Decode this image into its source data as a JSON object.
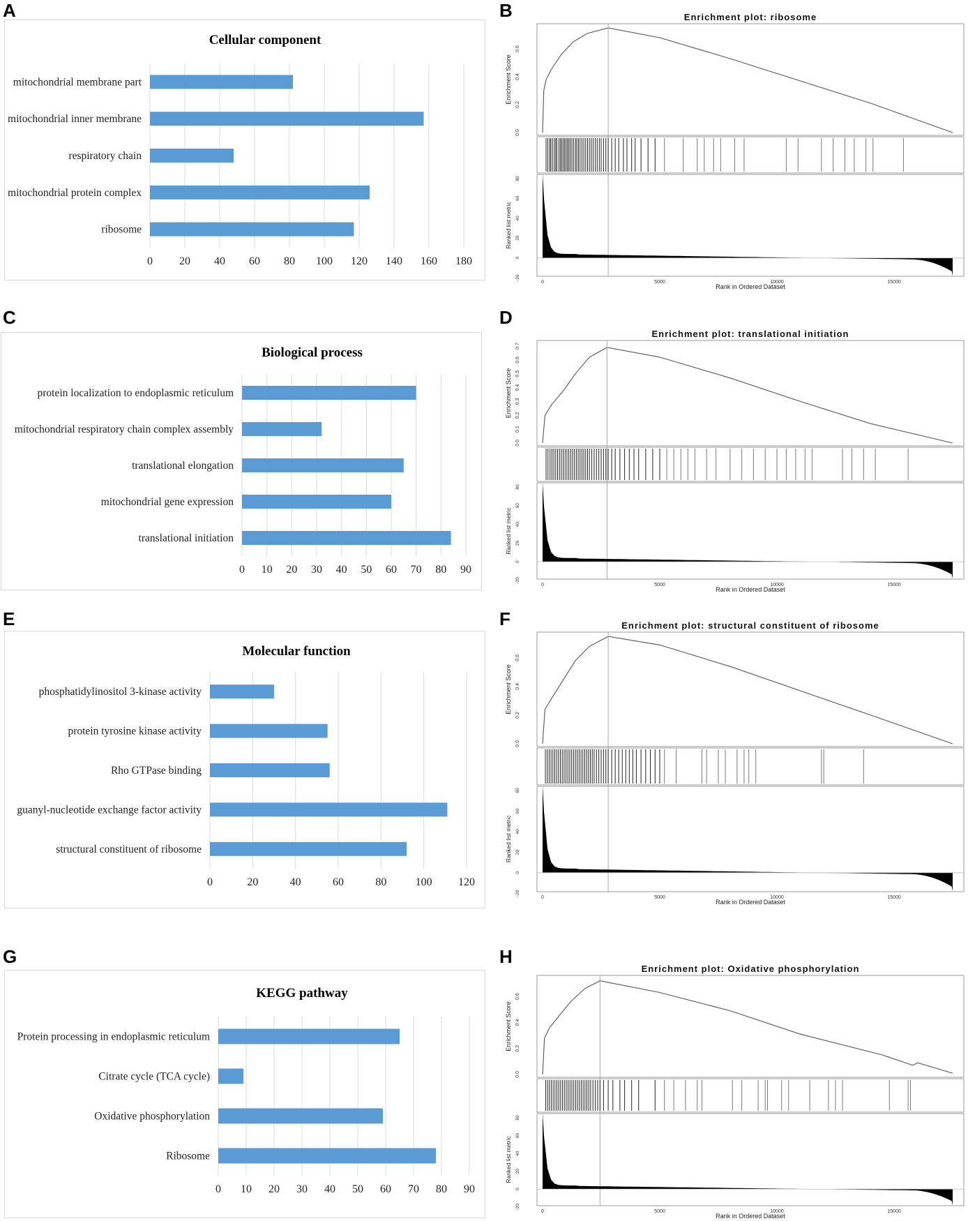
{
  "panel_letters": [
    "A",
    "B",
    "C",
    "D",
    "E",
    "F",
    "G",
    "H"
  ],
  "colors": {
    "bar": "#5b9bd5",
    "grid": "#d9d9d9",
    "frame": "#d9d9d9",
    "gsea_line": "#555555",
    "gsea_hits": "#222222"
  },
  "chart_data": [
    {
      "panel": "A",
      "type": "bar",
      "orientation": "horizontal",
      "title": "Cellular component",
      "categories": [
        "mitochondrial membrane part",
        "mitochondrial inner membrane",
        "respiratory chain",
        "mitochondrial protein complex",
        "ribosome"
      ],
      "values": [
        82,
        157,
        48,
        126,
        117
      ],
      "xlim": [
        0,
        180
      ],
      "xticks": [
        "0",
        "20",
        "40",
        "60",
        "80",
        "100",
        "120",
        "140",
        "160",
        "180"
      ]
    },
    {
      "panel": "C",
      "type": "bar",
      "orientation": "horizontal",
      "title": "Biological process",
      "categories": [
        "protein localization to endoplasmic reticulum",
        "mitochondrial respiratory chain complex assembly",
        "translational elongation",
        "mitochondrial gene expression",
        "translational initiation"
      ],
      "values": [
        70,
        32,
        65,
        60,
        84
      ],
      "xlim": [
        0,
        90
      ],
      "xticks": [
        "0",
        "10",
        "20",
        "30",
        "40",
        "50",
        "60",
        "70",
        "80",
        "90"
      ]
    },
    {
      "panel": "E",
      "type": "bar",
      "orientation": "horizontal",
      "title": "Molecular function",
      "categories": [
        "phosphatidylinositol 3-kinase activity",
        "protein tyrosine kinase activity",
        "Rho GTPase binding",
        "guanyl-nucleotide exchange factor activity",
        "structural constituent of ribosome"
      ],
      "values": [
        30,
        55,
        56,
        111,
        92
      ],
      "xlim": [
        0,
        120
      ],
      "xticks": [
        "0",
        "20",
        "40",
        "60",
        "80",
        "100",
        "120"
      ]
    },
    {
      "panel": "G",
      "type": "bar",
      "orientation": "horizontal",
      "title": "KEGG pathway",
      "categories": [
        "Protein processing in endoplasmic reticulum",
        "Citrate cycle (TCA cycle)",
        "Oxidative phosphorylation",
        "Ribosome"
      ],
      "values": [
        65,
        9,
        59,
        78
      ],
      "xlim": [
        0,
        90
      ],
      "xticks": [
        "0",
        "10",
        "20",
        "30",
        "40",
        "50",
        "60",
        "70",
        "80",
        "90"
      ]
    },
    {
      "panel": "B",
      "type": "line",
      "title": "Enrichment plot: ribosome",
      "ylabel": "Enrichment Score",
      "ylabel2": "Ranked list metric",
      "xlabel": "Rank in Ordered Dataset",
      "es_yticks": [
        "0.0",
        "0.2",
        "0.4",
        "0.6"
      ],
      "es_ylim": [
        0,
        0.76
      ],
      "metric_yticks": [
        "-20",
        "0",
        "20",
        "40",
        "60",
        "80"
      ],
      "xticks": [
        "0",
        "5000",
        "10000",
        "15000"
      ],
      "xlim": [
        0,
        17500
      ],
      "peak_rank": 2800,
      "peak_es": 0.75,
      "es_curve": [
        [
          0,
          0
        ],
        [
          50,
          0.3
        ],
        [
          150,
          0.38
        ],
        [
          400,
          0.46
        ],
        [
          800,
          0.56
        ],
        [
          1300,
          0.65
        ],
        [
          1900,
          0.71
        ],
        [
          2800,
          0.75
        ],
        [
          5000,
          0.68
        ],
        [
          8000,
          0.53
        ],
        [
          11000,
          0.37
        ],
        [
          14000,
          0.21
        ],
        [
          17500,
          0
        ]
      ],
      "hit_ranks": [
        150,
        220,
        300,
        350,
        420,
        500,
        560,
        610,
        700,
        760,
        820,
        880,
        940,
        1000,
        1060,
        1120,
        1180,
        1250,
        1320,
        1400,
        1460,
        1530,
        1600,
        1680,
        1760,
        1840,
        1920,
        2000,
        2080,
        2160,
        2250,
        2330,
        2420,
        2500,
        2600,
        2700,
        2800,
        2950,
        3100,
        3250,
        3450,
        3600,
        3800,
        3950,
        4200,
        4500,
        4800,
        5200,
        6000,
        6600,
        6900,
        7300,
        7600,
        8200,
        8600,
        10400,
        10900,
        11900,
        12400,
        12900,
        13300,
        13800,
        14100,
        15400
      ]
    },
    {
      "panel": "D",
      "type": "line",
      "title": "Enrichment plot: translational initiation",
      "ylabel": "Enrichment Score",
      "ylabel2": "Ranked list metric",
      "xlabel": "Rank in Ordered Dataset",
      "es_yticks": [
        "0.0",
        "0.1",
        "0.2",
        "0.3",
        "0.4",
        "0.5",
        "0.6",
        "0.7"
      ],
      "es_ylim": [
        0,
        0.72
      ],
      "metric_yticks": [
        "-20",
        "0",
        "20",
        "40",
        "60",
        "80"
      ],
      "xticks": [
        "0",
        "5000",
        "10000",
        "15000"
      ],
      "xlim": [
        0,
        17500
      ],
      "peak_rank": 2750,
      "peak_es": 0.69,
      "es_curve": [
        [
          0,
          0
        ],
        [
          100,
          0.2
        ],
        [
          400,
          0.28
        ],
        [
          900,
          0.38
        ],
        [
          1400,
          0.5
        ],
        [
          2000,
          0.62
        ],
        [
          2750,
          0.69
        ],
        [
          5000,
          0.62
        ],
        [
          8000,
          0.47
        ],
        [
          11000,
          0.3
        ],
        [
          14000,
          0.14
        ],
        [
          17500,
          0
        ]
      ],
      "hit_ranks": [
        150,
        230,
        320,
        400,
        480,
        560,
        640,
        720,
        800,
        880,
        960,
        1040,
        1120,
        1200,
        1280,
        1360,
        1440,
        1520,
        1600,
        1680,
        1760,
        1840,
        1920,
        2000,
        2100,
        2200,
        2300,
        2400,
        2500,
        2600,
        2700,
        2800,
        2950,
        3100,
        3300,
        3500,
        3700,
        3900,
        4100,
        4400,
        4700,
        5000,
        5300,
        5600,
        5900,
        6200,
        6500,
        7000,
        7400,
        8000,
        8500,
        9000,
        9500,
        10000,
        10400,
        10800,
        11200,
        11500,
        12800,
        13200,
        13700,
        14200,
        15600
      ]
    },
    {
      "panel": "F",
      "type": "line",
      "title": "Enrichment plot: structural constituent of ribosome",
      "ylabel": "Enrichment Score",
      "ylabel2": "Ranked list metric",
      "xlabel": "Rank in Ordered Dataset",
      "es_yticks": [
        "0.0",
        "0.2",
        "0.4",
        "0.6"
      ],
      "es_ylim": [
        0,
        0.76
      ],
      "metric_yticks": [
        "-20",
        "0",
        "20",
        "40",
        "60",
        "80"
      ],
      "xticks": [
        "0",
        "5000",
        "10000",
        "15000"
      ],
      "xlim": [
        0,
        17500
      ],
      "peak_rank": 2800,
      "peak_es": 0.75,
      "es_curve": [
        [
          0,
          0
        ],
        [
          100,
          0.24
        ],
        [
          400,
          0.32
        ],
        [
          900,
          0.45
        ],
        [
          1400,
          0.58
        ],
        [
          2000,
          0.68
        ],
        [
          2800,
          0.75
        ],
        [
          5000,
          0.69
        ],
        [
          8000,
          0.54
        ],
        [
          11000,
          0.37
        ],
        [
          14000,
          0.2
        ],
        [
          17500,
          0
        ]
      ],
      "hit_ranks": [
        120,
        200,
        280,
        360,
        440,
        520,
        600,
        680,
        760,
        840,
        920,
        1000,
        1080,
        1160,
        1240,
        1320,
        1400,
        1480,
        1560,
        1640,
        1720,
        1800,
        1880,
        1960,
        2040,
        2120,
        2200,
        2300,
        2400,
        2500,
        2600,
        2700,
        2800,
        2950,
        3100,
        3250,
        3400,
        3550,
        3700,
        3850,
        4000,
        4200,
        4400,
        4600,
        4800,
        5000,
        5200,
        5700,
        6800,
        7000,
        7500,
        7800,
        8300,
        8600,
        8800,
        9100,
        11900,
        12000,
        13700
      ]
    },
    {
      "panel": "H",
      "type": "line",
      "title": "Enrichment plot: Oxidative phosphorylation",
      "ylabel": "Enrichment Score",
      "ylabel2": "Ranked list metric",
      "xlabel": "Rank in Ordered Dataset",
      "es_yticks": [
        "0.0",
        "0.2",
        "0.4",
        "0.6"
      ],
      "es_ylim": [
        0,
        0.74
      ],
      "metric_yticks": [
        "-20",
        "0",
        "20",
        "40",
        "60",
        "80"
      ],
      "xticks": [
        "0",
        "5000",
        "10000",
        "15000"
      ],
      "xlim": [
        0,
        17500
      ],
      "peak_rank": 2450,
      "peak_es": 0.72,
      "es_curve": [
        [
          0,
          0
        ],
        [
          80,
          0.28
        ],
        [
          300,
          0.36
        ],
        [
          700,
          0.45
        ],
        [
          1200,
          0.56
        ],
        [
          1800,
          0.66
        ],
        [
          2450,
          0.72
        ],
        [
          5000,
          0.63
        ],
        [
          8000,
          0.49
        ],
        [
          11000,
          0.31
        ],
        [
          14500,
          0.15
        ],
        [
          15800,
          0.07
        ],
        [
          16000,
          0.09
        ],
        [
          17500,
          0.01
        ]
      ],
      "hit_ranks": [
        130,
        210,
        290,
        370,
        450,
        530,
        610,
        690,
        770,
        850,
        930,
        1010,
        1090,
        1170,
        1250,
        1330,
        1410,
        1490,
        1570,
        1650,
        1730,
        1810,
        1890,
        1970,
        2050,
        2150,
        2250,
        2350,
        2450,
        2600,
        2800,
        3000,
        3300,
        3500,
        3800,
        4100,
        4800,
        5200,
        5600,
        6100,
        6600,
        6800,
        8100,
        8500,
        9200,
        9500,
        9600,
        10200,
        10500,
        11400,
        12200,
        12500,
        12800,
        14800,
        15600,
        15700
      ]
    }
  ]
}
